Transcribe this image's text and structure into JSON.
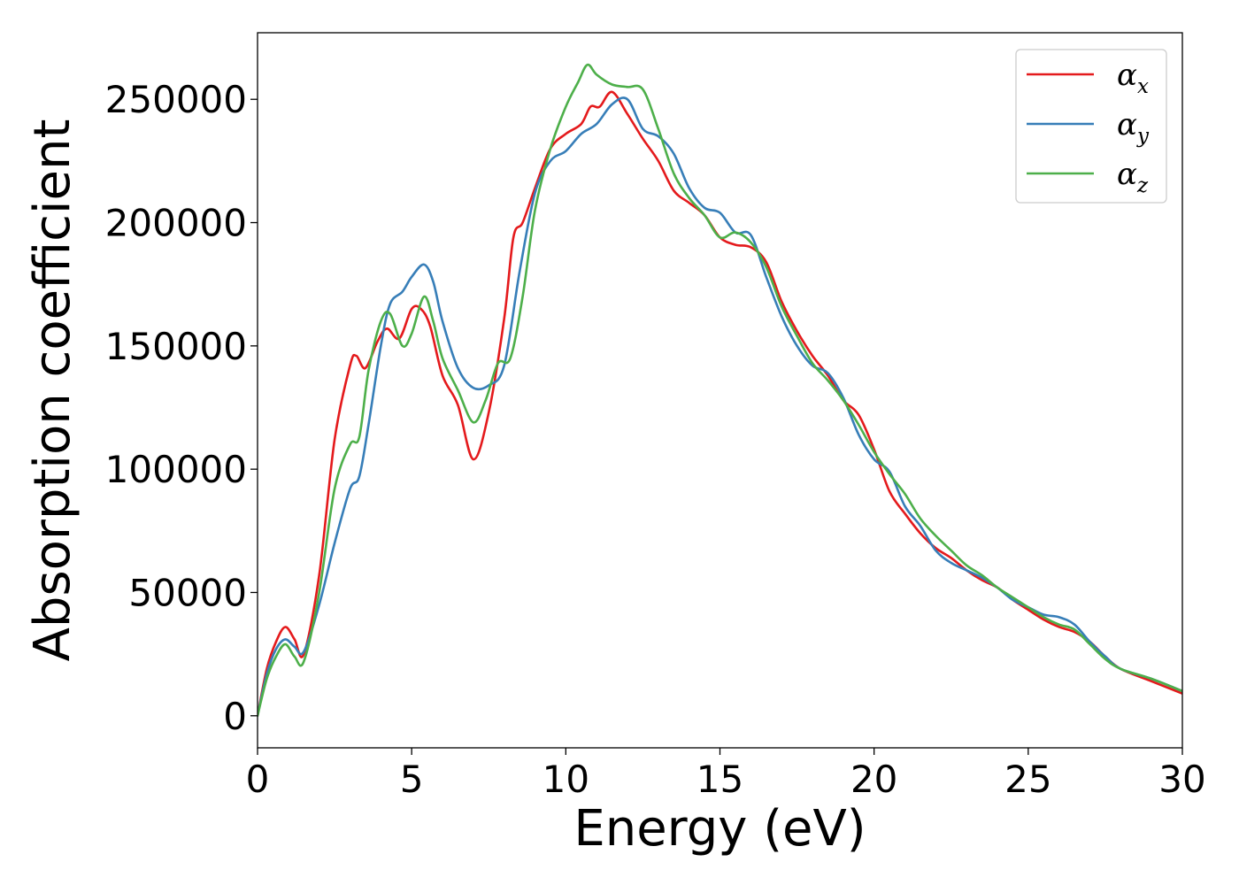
{
  "chart_data": {
    "type": "line",
    "title": "",
    "xlabel": "Energy (eV)",
    "ylabel": "Absorption coefficient",
    "xlim": [
      0,
      30
    ],
    "ylim": [
      -13000,
      277000
    ],
    "xticks": [
      0,
      5,
      10,
      15,
      20,
      25,
      30
    ],
    "xtick_labels": [
      "0",
      "5",
      "10",
      "15",
      "20",
      "25",
      "30"
    ],
    "yticks": [
      0,
      50000,
      100000,
      150000,
      200000,
      250000
    ],
    "ytick_labels": [
      "0",
      "50000",
      "100000",
      "150000",
      "200000",
      "250000"
    ],
    "grid": false,
    "legend_position": "top-right",
    "series": [
      {
        "name": "αx",
        "symbol": "α",
        "subscript": "x",
        "color": "#e41a1c",
        "x": [
          0,
          0.3,
          0.6,
          0.9,
          1.2,
          1.5,
          2.0,
          2.5,
          3.0,
          3.2,
          3.5,
          3.9,
          4.2,
          4.6,
          5.0,
          5.3,
          5.6,
          6.0,
          6.5,
          7.0,
          7.5,
          8.0,
          8.3,
          8.6,
          9.0,
          9.5,
          10.0,
          10.5,
          10.8,
          11.1,
          11.5,
          12.0,
          12.5,
          13.0,
          13.5,
          14.0,
          14.5,
          15.0,
          15.5,
          16.0,
          16.5,
          17.0,
          17.5,
          18.0,
          18.5,
          19.0,
          19.5,
          20.0,
          20.5,
          21.0,
          21.5,
          22.0,
          22.5,
          23.0,
          23.5,
          24.0,
          24.5,
          25.0,
          25.5,
          26.0,
          26.5,
          27.0,
          27.5,
          28.0,
          29.0,
          30.0
        ],
        "y": [
          0,
          19000,
          30000,
          36000,
          31000,
          25000,
          57000,
          112000,
          142000,
          146000,
          141000,
          152000,
          157000,
          153000,
          165000,
          165000,
          158000,
          138000,
          126000,
          104000,
          123000,
          161000,
          194000,
          200000,
          214000,
          230000,
          236000,
          240000,
          247000,
          247000,
          253000,
          244000,
          234000,
          225000,
          213000,
          208000,
          203000,
          194000,
          191000,
          190000,
          184000,
          168000,
          156000,
          146000,
          138000,
          128000,
          122000,
          108000,
          91000,
          82000,
          74000,
          68000,
          64000,
          59000,
          55000,
          52000,
          47000,
          43000,
          39000,
          36000,
          34000,
          30000,
          24000,
          19000,
          14000,
          9000
        ]
      },
      {
        "name": "αy",
        "symbol": "α",
        "subscript": "y",
        "color": "#377eb8",
        "x": [
          0,
          0.3,
          0.6,
          0.9,
          1.2,
          1.5,
          2.0,
          2.5,
          3.0,
          3.3,
          3.6,
          4.0,
          4.3,
          4.7,
          5.0,
          5.4,
          5.7,
          6.0,
          6.5,
          7.0,
          7.5,
          8.0,
          8.5,
          9.0,
          9.5,
          10.0,
          10.5,
          11.0,
          11.5,
          12.0,
          12.5,
          13.0,
          13.5,
          14.0,
          14.5,
          15.0,
          15.5,
          16.0,
          16.5,
          17.0,
          17.5,
          18.0,
          18.5,
          19.0,
          19.5,
          20.0,
          20.5,
          21.0,
          21.5,
          22.0,
          22.5,
          23.0,
          23.5,
          24.0,
          24.5,
          25.0,
          25.5,
          26.0,
          26.5,
          27.0,
          27.5,
          28.0,
          29.0,
          30.0
        ],
        "y": [
          0,
          17000,
          27000,
          31000,
          28000,
          26000,
          45000,
          70000,
          92000,
          97000,
          118000,
          150000,
          167000,
          172000,
          178000,
          183000,
          176000,
          160000,
          141000,
          133000,
          134000,
          142000,
          180000,
          212000,
          225000,
          229000,
          236000,
          240000,
          248000,
          250000,
          238000,
          235000,
          228000,
          214000,
          206000,
          204000,
          196000,
          195000,
          178000,
          162000,
          150000,
          142000,
          139000,
          129000,
          114000,
          104000,
          99000,
          85000,
          77000,
          67000,
          62000,
          59000,
          56000,
          52000,
          47000,
          44000,
          41000,
          40000,
          37000,
          30000,
          24000,
          19000,
          15000,
          10000
        ]
      },
      {
        "name": "αz",
        "symbol": "α",
        "subscript": "z",
        "color": "#4daf4a",
        "x": [
          0,
          0.3,
          0.6,
          0.9,
          1.2,
          1.5,
          2.0,
          2.5,
          3.0,
          3.3,
          3.6,
          4.0,
          4.3,
          4.7,
          5.0,
          5.4,
          5.7,
          6.0,
          6.5,
          7.0,
          7.4,
          7.8,
          8.2,
          8.6,
          9.0,
          9.5,
          10.0,
          10.4,
          10.7,
          11.0,
          11.5,
          12.0,
          12.5,
          13.0,
          13.5,
          14.0,
          14.5,
          15.0,
          15.5,
          16.0,
          16.5,
          17.0,
          17.5,
          18.0,
          18.5,
          19.0,
          19.5,
          20.0,
          20.5,
          21.0,
          21.5,
          22.0,
          22.5,
          23.0,
          23.5,
          24.0,
          24.5,
          25.0,
          25.5,
          26.0,
          26.5,
          27.0,
          27.5,
          28.0,
          29.0,
          30.0
        ],
        "y": [
          0,
          15000,
          24000,
          29000,
          24000,
          22000,
          50000,
          92000,
          110000,
          113000,
          140000,
          160000,
          163000,
          150000,
          155000,
          170000,
          160000,
          145000,
          132000,
          119000,
          128000,
          143000,
          145000,
          170000,
          205000,
          230000,
          247000,
          257000,
          264000,
          260000,
          256000,
          255000,
          254000,
          238000,
          220000,
          210000,
          203000,
          194000,
          196000,
          192000,
          182000,
          166000,
          154000,
          143000,
          136000,
          128000,
          118000,
          107000,
          98000,
          90000,
          80000,
          73000,
          67000,
          61000,
          57000,
          52000,
          48000,
          44000,
          40000,
          37000,
          35000,
          29000,
          23000,
          19000,
          15000,
          10000
        ]
      }
    ]
  }
}
